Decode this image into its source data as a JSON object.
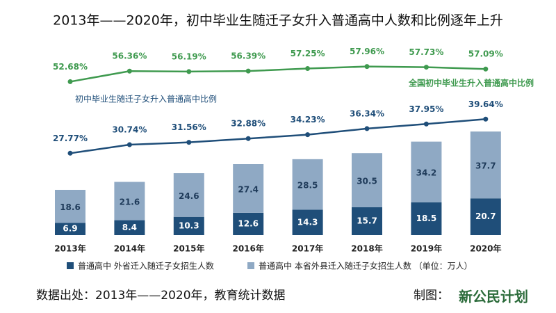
{
  "chart_data": {
    "type": "combo",
    "title": "2013年——2020年，初中毕业生随迁子女升入普通高中人数和比例逐年上升",
    "categories": [
      "2013年",
      "2014年",
      "2015年",
      "2016年",
      "2017年",
      "2018年",
      "2019年",
      "2020年"
    ],
    "series": [
      {
        "name": "普通高中 外省迁入随迁子女招生人数",
        "color": "#1f4e79",
        "values": [
          6.9,
          8.4,
          10.3,
          12.6,
          14.3,
          15.7,
          18.5,
          20.7
        ]
      },
      {
        "name": "普通高中 本省外县迁入随迁子女招生人数 （单位：万人）",
        "color": "#8fa9c4",
        "values": [
          18.6,
          21.6,
          24.6,
          27.4,
          28.5,
          30.5,
          34.2,
          37.7
        ]
      }
    ],
    "lines": [
      {
        "name": "全国初中毕业生升入普通高中比例",
        "color": "#3f9a4f",
        "values": [
          52.68,
          56.36,
          56.19,
          56.39,
          57.25,
          57.96,
          57.73,
          57.09
        ],
        "value_labels": [
          "52.68%",
          "56.36%",
          "56.19%",
          "56.39%",
          "57.25%",
          "57.96%",
          "57.73%",
          "57.09%"
        ]
      },
      {
        "name": "初中毕业生随迁子女升入普通高中比例",
        "color": "#1f4e79",
        "values": [
          27.77,
          30.74,
          31.56,
          32.88,
          34.23,
          36.34,
          37.95,
          39.64
        ],
        "value_labels": [
          "27.77%",
          "30.74%",
          "31.56%",
          "32.88%",
          "34.23%",
          "36.34%",
          "37.95%",
          "39.64%"
        ]
      }
    ],
    "source": "数据出处：2013年——2020年，教育统计数据",
    "credit": "制图：",
    "logo": "新公民计划"
  }
}
